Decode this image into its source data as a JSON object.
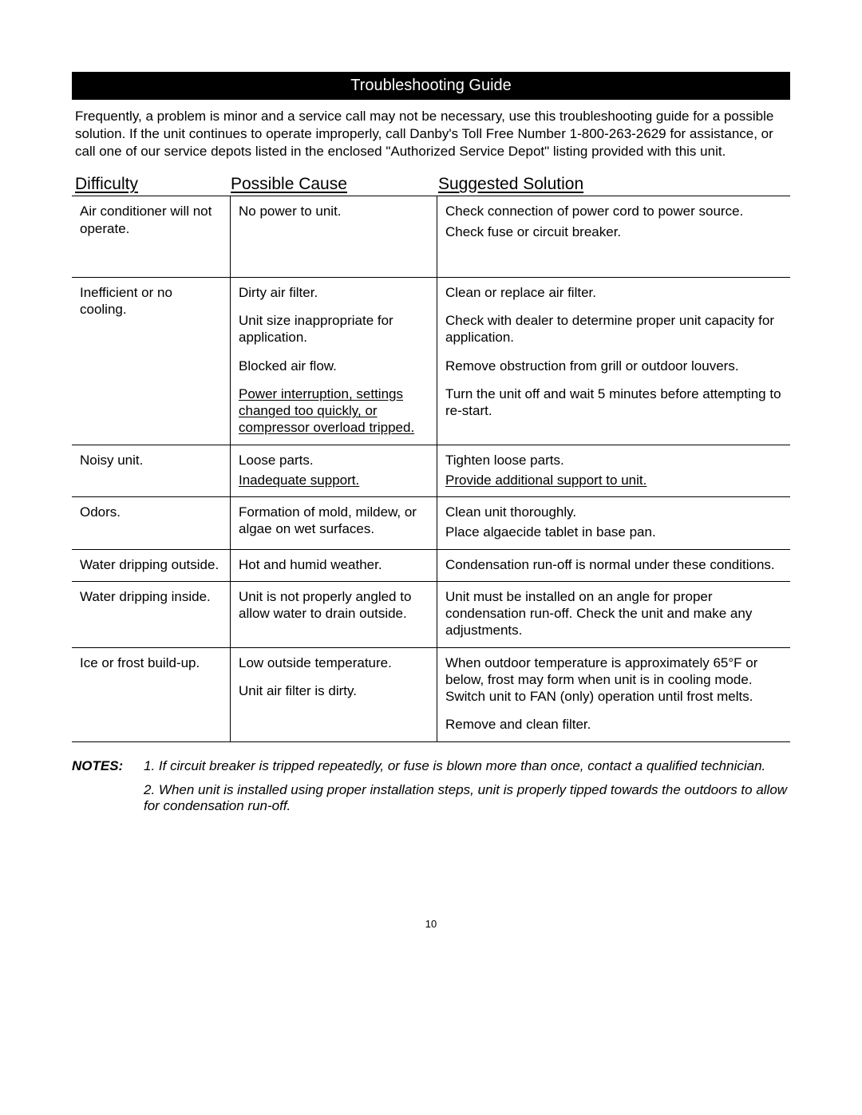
{
  "title": "Troubleshooting Guide",
  "intro": "Frequently, a problem is minor and a service call may not be necessary, use this troubleshooting guide for a possible solution.  If the unit continues to operate improperly, call Danby's Toll Free Number 1-800-263-2629   for assistance, or call one of our service depots listed in the enclosed \"Authorized Service Depot\" listing provided with this unit.",
  "columns": {
    "a": "Difficulty",
    "b": "Possible Cause",
    "c": "Suggested Solution"
  },
  "rows": [
    {
      "difficulty": "Air conditioner will not operate.",
      "items": [
        {
          "cause": "No power to unit.",
          "solution": "Check connection of power cord to power source.\nCheck fuse or circuit breaker."
        }
      ],
      "extra_bottom_space": true
    },
    {
      "difficulty": "Inefficient or no cooling.",
      "items": [
        {
          "cause": "Dirty air filter.",
          "solution": "Clean or replace air filter."
        },
        {
          "cause": "Unit size inappropriate for application.",
          "solution": "Check with dealer to determine proper unit capacity for application."
        },
        {
          "cause": "Blocked air flow.",
          "solution": "Remove obstruction from grill or outdoor louvers."
        },
        {
          "cause": "Power interruption, settings changed too quickly, or compressor overload tripped.",
          "cause_underlined": true,
          "solution": "Turn the unit off and wait 5 minutes before attempting to re-start.",
          "no_gap_after": true
        }
      ]
    },
    {
      "difficulty": "Noisy unit.",
      "items": [
        {
          "cause": "Loose parts.",
          "solution": "Tighten loose parts.",
          "tight": true
        },
        {
          "cause": "Inadequate support.",
          "cause_underlined": true,
          "solution": "Provide additional support to unit.",
          "solution_underlined": true,
          "no_gap_after": true
        }
      ]
    },
    {
      "difficulty": "Odors.",
      "items": [
        {
          "cause": "Formation of mold, mildew, or algae on wet surfaces.",
          "solution": "Clean unit thoroughly.\nPlace algaecide tablet in base pan."
        }
      ],
      "extra_bottom_space_small": true
    },
    {
      "difficulty": "Water dripping outside.",
      "items": [
        {
          "cause": "Hot and humid weather.",
          "solution": "Condensation run-off is normal under these conditions.",
          "no_gap_after": true
        }
      ]
    },
    {
      "difficulty": "Water dripping inside.",
      "items": [
        {
          "cause": "Unit is not properly angled to allow water to drain outside.",
          "solution": "Unit must be installed on an angle for proper condensation run-off. Check the unit and make any adjustments.",
          "no_gap_after": true
        }
      ]
    },
    {
      "difficulty": "Ice or frost build-up.",
      "items": [
        {
          "cause": "Low outside temperature.",
          "solution": "When outdoor temperature is approximately 65°F or below, frost may form when unit is in cooling mode.  Switch unit to FAN (only) operation until frost melts."
        },
        {
          "cause": "Unit air filter is dirty.",
          "solution": "Remove and clean filter."
        }
      ]
    }
  ],
  "notes_label": "NOTES:",
  "notes": [
    "1.  If circuit breaker is tripped repeatedly, or fuse is blown more than once, contact a qualified technician.",
    "2.  When unit is installed using proper installation steps, unit is properly tipped towards the outdoors to allow for condensation run-off."
  ],
  "page_number": "10"
}
